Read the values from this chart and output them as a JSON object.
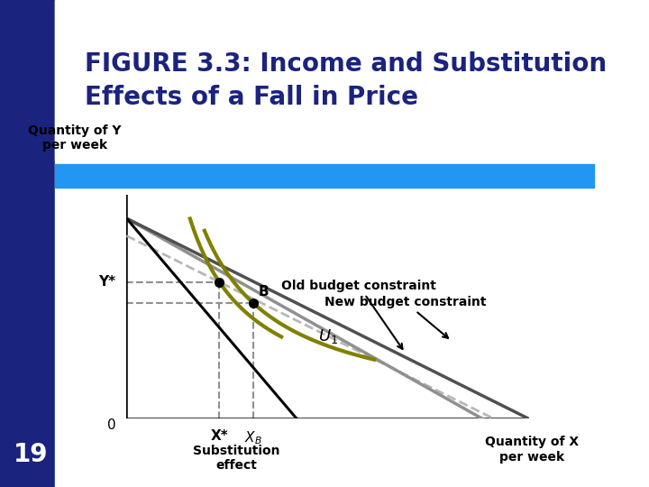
{
  "title_line1": "FIGURE 3.3: Income and Substitution",
  "title_line2": "Effects of a Fall in Price",
  "title_color": "#1a237e",
  "title_fontsize": 20,
  "bg_color": "#ffffff",
  "header_bar_color": "#2196f3",
  "left_rect_color": "#1a237e",
  "page_number": "19",
  "old_budget_color": "#909090",
  "new_budget_color": "#505050",
  "compensated_color": "#b0b0b0",
  "u_color": "#808000",
  "point_color": "#000000",
  "dashed_color": "#909090",
  "arrow_color": "#000000",
  "xstar": 3.0,
  "ystar": 5.8,
  "xb": 4.1,
  "yb": 4.9,
  "axis_xlim": [
    0,
    13
  ],
  "axis_ylim": [
    0,
    9.5
  ]
}
